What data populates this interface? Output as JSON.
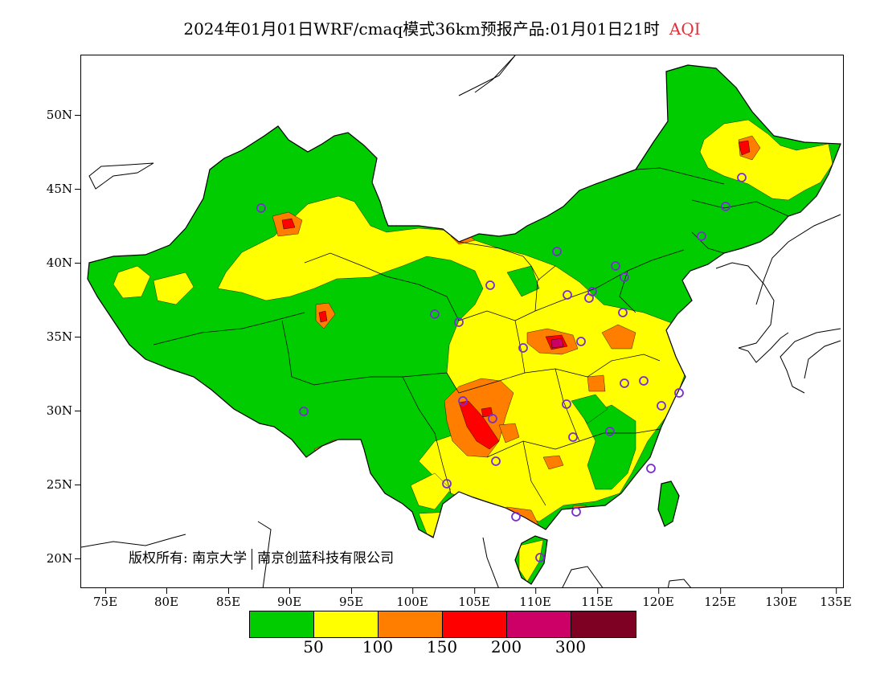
{
  "title": {
    "main": "2024年01月01日WRF/cmaq模式36km预报产品:01月01日21时",
    "variable": "AQI",
    "variable_color": "#e0303a"
  },
  "axes": {
    "lat_labels": [
      "50N",
      "45N",
      "40N",
      "35N",
      "30N",
      "25N",
      "20N"
    ],
    "lon_labels": [
      "75E",
      "80E",
      "85E",
      "90E",
      "95E",
      "100E",
      "105E",
      "110E",
      "115E",
      "120E",
      "125E",
      "130E",
      "135E"
    ],
    "lon_range": [
      73,
      135
    ],
    "lat_range": [
      18,
      54
    ]
  },
  "copyright": {
    "prefix": "版权所有:",
    "owner1": "南京大学",
    "owner2": "南京创蓝科技有限公司"
  },
  "legend": {
    "colors": [
      "#00cc00",
      "#ffff00",
      "#ff7e00",
      "#ff0000",
      "#cc0066",
      "#7e0023"
    ],
    "labels": [
      "50",
      "100",
      "150",
      "200",
      "300"
    ]
  },
  "colors": {
    "good": "#00cc00",
    "moderate": "#ffff00",
    "usg": "#ff7e00",
    "unhealthy": "#ff0000",
    "very_unhealthy": "#cc0066",
    "hazardous": "#7e0023",
    "station_marker": "#7b2bd6"
  }
}
